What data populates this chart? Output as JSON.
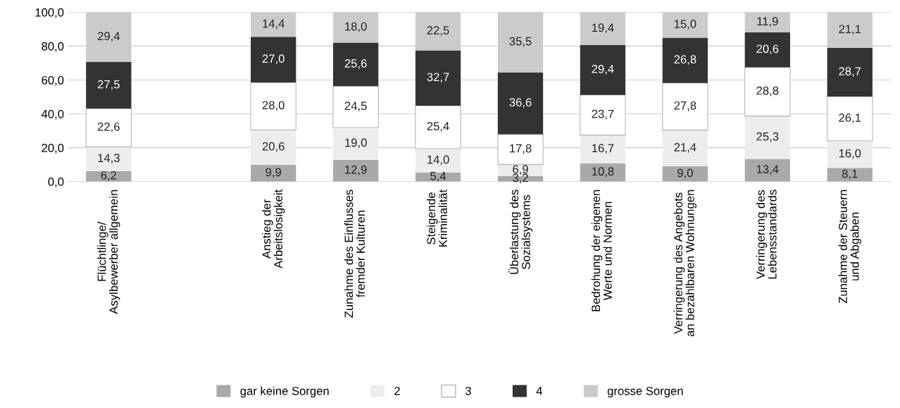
{
  "chart_data": {
    "type": "bar",
    "stacked": true,
    "categories": [
      "Flüchtlinge/\nAsylbewerber allgemein",
      null,
      "Anstieg der\nArbeitslosigkeit",
      "Zunahme des Einflusses\nfremder Kulturen",
      "Steigende\nKriminalität",
      "Überlastung des\nSozialsystems",
      "Bedrohung der eigenen\nWerte und Normen",
      "Verringerung des Angebots\nan bezahlbaren Wohnungen",
      "Verringerung des\nLebensstandards",
      "Zunahme der Steuern\nund Abgaben"
    ],
    "series": [
      {
        "name": "gar keine Sorgen",
        "color": "#a9a9a9",
        "values": [
          6.2,
          null,
          9.9,
          12.9,
          5.4,
          3.2,
          10.8,
          9.0,
          13.4,
          8.1
        ],
        "value_labels": [
          "6,2",
          null,
          "9,9",
          "12,9",
          "5,4",
          "3,2",
          "10,8",
          "9,0",
          "13,4",
          "8,1"
        ]
      },
      {
        "name": "2",
        "color": "#ededed",
        "values": [
          14.3,
          null,
          20.6,
          19.0,
          14.0,
          6.9,
          16.7,
          21.4,
          25.3,
          16.0
        ],
        "value_labels": [
          "14,3",
          null,
          "20,6",
          "19,0",
          "14,0",
          "6,9",
          "16,7",
          "21,4",
          "25,3",
          "16,0"
        ]
      },
      {
        "name": "3",
        "color": "#ffffff",
        "values": [
          22.6,
          null,
          28.0,
          24.5,
          25.4,
          17.8,
          23.7,
          27.8,
          28.8,
          26.1
        ],
        "value_labels": [
          "22,6",
          null,
          "28,0",
          "24,5",
          "25,4",
          "17,8",
          "23,7",
          "27,8",
          "28,8",
          "26,1"
        ]
      },
      {
        "name": "4",
        "color": "#333333",
        "values": [
          27.5,
          null,
          27.0,
          25.6,
          32.7,
          36.6,
          29.4,
          26.8,
          20.6,
          28.7
        ],
        "value_labels": [
          "27,5",
          null,
          "27,0",
          "25,6",
          "32,7",
          "36,6",
          "29,4",
          "26,8",
          "20,6",
          "28,7"
        ]
      },
      {
        "name": "grosse Sorgen",
        "color": "#cbcbcb",
        "values": [
          29.4,
          null,
          14.4,
          18.0,
          22.5,
          35.5,
          19.4,
          15.0,
          11.9,
          21.1
        ],
        "value_labels": [
          "29,4",
          null,
          "14,4",
          "18,0",
          "22,5",
          "35,5",
          "19,4",
          "15,0",
          "11,9",
          "21,1"
        ]
      }
    ],
    "ylim": [
      0,
      100
    ],
    "yticks": [
      {
        "value": 0,
        "label": "0,0"
      },
      {
        "value": 20,
        "label": "20,0"
      },
      {
        "value": 40,
        "label": "40,0"
      },
      {
        "value": 60,
        "label": "60,0"
      },
      {
        "value": 80,
        "label": "80,0"
      },
      {
        "value": 100,
        "label": "100,0"
      }
    ],
    "grid": "y",
    "legend": "bottom"
  }
}
